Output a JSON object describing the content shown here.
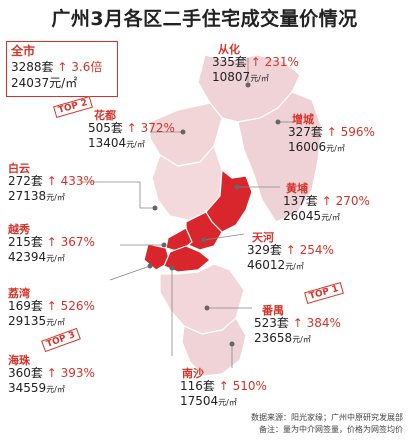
{
  "title": "广州3月各区二手住宅成交量价情况",
  "summary": {
    "label": "全市",
    "volume": "3288套",
    "growth": "↑ 3.6倍",
    "price": "24037元/㎡"
  },
  "districts": [
    {
      "name": "从化",
      "volume": "335套",
      "growth": "↑ 231%",
      "price": "10807",
      "unit": "元/㎡"
    },
    {
      "name": "花都",
      "volume": "505套",
      "growth": "↑ 372%",
      "price": "13404",
      "unit": "元/㎡",
      "tag": "TOP 2"
    },
    {
      "name": "增城",
      "volume": "327套",
      "growth": "↑ 596%",
      "price": "16006",
      "unit": "元/㎡"
    },
    {
      "name": "白云",
      "volume": "272套",
      "growth": "↑ 433%",
      "price": "27138",
      "unit": "元/㎡"
    },
    {
      "name": "黄埔",
      "volume": "137套",
      "growth": "↑ 270%",
      "price": "26045",
      "unit": "元/㎡"
    },
    {
      "name": "越秀",
      "volume": "215套",
      "growth": "↑ 367%",
      "price": "42394",
      "unit": "元/㎡"
    },
    {
      "name": "天河",
      "volume": "329套",
      "growth": "↑ 254%",
      "price": "46012",
      "unit": "元/㎡"
    },
    {
      "name": "荔湾",
      "volume": "169套",
      "growth": "↑ 526%",
      "price": "29135",
      "unit": "元/㎡"
    },
    {
      "name": "番禺",
      "volume": "523套",
      "growth": "↑ 384%",
      "price": "23658",
      "unit": "元/㎡",
      "tag": "TOP 1"
    },
    {
      "name": "海珠",
      "volume": "360套",
      "growth": "↑ 393%",
      "price": "34559",
      "unit": "元/㎡",
      "tag": "TOP 3"
    },
    {
      "name": "南沙",
      "volume": "116套",
      "growth": "↑ 510%",
      "price": "17504",
      "unit": "元/㎡"
    }
  ],
  "source_line1": "数据来源：阳光家缘；广州中原研究发展部",
  "source_line2": "备注：量为中介网签量，价格为网签均价",
  "colors": {
    "accent": "#d8332a",
    "map_light": "#f1d5d7",
    "map_highlight": "#d9262c",
    "border": "#ffffff"
  }
}
